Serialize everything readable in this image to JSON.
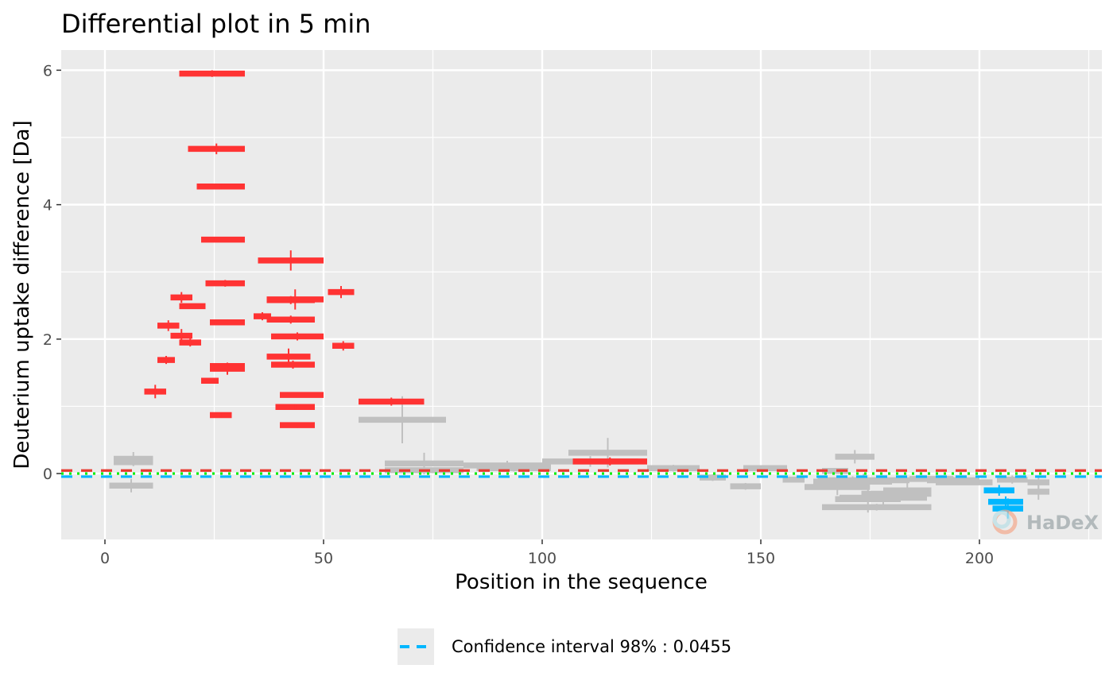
{
  "chart_data": {
    "type": "scatter",
    "title": "Differential plot in 5 min",
    "xlabel": "Position in the sequence",
    "ylabel": "Deuterium uptake difference [Da]",
    "xlim": [
      -10,
      228
    ],
    "ylim": [
      -0.98,
      6.3
    ],
    "x_ticks": [
      0,
      50,
      100,
      150,
      200
    ],
    "x_tick_labels": [
      "0",
      "50",
      "100",
      "150",
      "200"
    ],
    "y_ticks": [
      0,
      2,
      4,
      6
    ],
    "y_tick_labels": [
      "0",
      "2",
      "4",
      "6"
    ],
    "grid": true,
    "legend_position": "bottom",
    "legend": {
      "label": "Confidence interval 98% : 0.0455",
      "color": "#00b7ff"
    },
    "watermark": "HaDeX",
    "colors": {
      "significant_positive": "#ff3333",
      "significant_negative": "#00b7ff",
      "not_significant": "#c0c0c0",
      "ci_upper": "#e8392e",
      "ci_lower": "#00b7ff",
      "zero_line": "#00ee00",
      "panel_background": "#ebebeb",
      "grid": "#ffffff"
    },
    "reference_lines": [
      {
        "y": 0.0455,
        "color": "#e8392e",
        "style": "dashed"
      },
      {
        "y": -0.0455,
        "color": "#00b7ff",
        "style": "dashed"
      },
      {
        "y": 0,
        "color": "#00ee00",
        "style": "dotted"
      }
    ],
    "series": [
      {
        "significance": "positive",
        "color": "#ff3333",
        "segments": [
          {
            "start": 17,
            "end": 32,
            "value": 5.95,
            "err": 0.05
          },
          {
            "start": 19,
            "end": 32,
            "value": 4.83,
            "err": 0.08
          },
          {
            "start": 21,
            "end": 32,
            "value": 4.27,
            "err": 0.04
          },
          {
            "start": 22,
            "end": 32,
            "value": 3.48,
            "err": 0.04
          },
          {
            "start": 23,
            "end": 32,
            "value": 2.83,
            "err": 0.05
          },
          {
            "start": 15,
            "end": 20,
            "value": 2.62,
            "err": 0.08
          },
          {
            "start": 17,
            "end": 23,
            "value": 2.49,
            "err": 0.04
          },
          {
            "start": 12,
            "end": 17,
            "value": 2.2,
            "err": 0.08
          },
          {
            "start": 15,
            "end": 20,
            "value": 2.05,
            "err": 0.1
          },
          {
            "start": 17,
            "end": 22,
            "value": 1.95,
            "err": 0.06
          },
          {
            "start": 24,
            "end": 32,
            "value": 2.25,
            "err": 0.04
          },
          {
            "start": 12,
            "end": 16,
            "value": 1.69,
            "err": 0.06
          },
          {
            "start": 24,
            "end": 32,
            "value": 1.6,
            "err": 0.05
          },
          {
            "start": 24,
            "end": 32,
            "value": 1.56,
            "err": 0.09
          },
          {
            "start": 22,
            "end": 26,
            "value": 1.38,
            "err": 0.04
          },
          {
            "start": 9,
            "end": 14,
            "value": 1.22,
            "err": 0.1
          },
          {
            "start": 24,
            "end": 29,
            "value": 0.87,
            "err": 0.04
          },
          {
            "start": 35,
            "end": 50,
            "value": 3.17,
            "err": 0.15
          },
          {
            "start": 34,
            "end": 38,
            "value": 2.34,
            "err": 0.06
          },
          {
            "start": 37,
            "end": 50,
            "value": 2.59,
            "err": 0.15
          },
          {
            "start": 37,
            "end": 48,
            "value": 2.58,
            "err": 0.06
          },
          {
            "start": 37,
            "end": 48,
            "value": 2.29,
            "err": 0.06
          },
          {
            "start": 38,
            "end": 50,
            "value": 2.04,
            "err": 0.06
          },
          {
            "start": 37,
            "end": 47,
            "value": 1.74,
            "err": 0.12
          },
          {
            "start": 38,
            "end": 48,
            "value": 1.62,
            "err": 0.06
          },
          {
            "start": 40,
            "end": 50,
            "value": 1.17,
            "err": 0.04
          },
          {
            "start": 39,
            "end": 48,
            "value": 0.99,
            "err": 0.04
          },
          {
            "start": 40,
            "end": 48,
            "value": 0.72,
            "err": 0.04
          },
          {
            "start": 51,
            "end": 57,
            "value": 2.7,
            "err": 0.09
          },
          {
            "start": 52,
            "end": 57,
            "value": 1.9,
            "err": 0.07
          },
          {
            "start": 58,
            "end": 73,
            "value": 1.07,
            "err": 0.06
          },
          {
            "start": 107,
            "end": 124,
            "value": 0.18,
            "err": 0.06
          }
        ]
      },
      {
        "significance": "negative",
        "color": "#00b7ff",
        "segments": [
          {
            "start": 201,
            "end": 208,
            "value": -0.25,
            "err": 0.08
          },
          {
            "start": 202,
            "end": 210,
            "value": -0.42,
            "err": 0.08
          },
          {
            "start": 203,
            "end": 210,
            "value": -0.52,
            "err": 0.15
          }
        ]
      },
      {
        "significance": "none",
        "color": "#c0c0c0",
        "segments": [
          {
            "start": 2,
            "end": 11,
            "value": 0.22,
            "err": 0.1
          },
          {
            "start": 2,
            "end": 11,
            "value": 0.17,
            "err": 0.06
          },
          {
            "start": 1,
            "end": 11,
            "value": -0.18,
            "err": 0.1
          },
          {
            "start": 58,
            "end": 78,
            "value": 0.8,
            "err": 0.35
          },
          {
            "start": 64,
            "end": 82,
            "value": 0.15,
            "err": 0.16
          },
          {
            "start": 64,
            "end": 82,
            "value": 0.05,
            "err": 0.06
          },
          {
            "start": 82,
            "end": 102,
            "value": 0.12,
            "err": 0.07
          },
          {
            "start": 85,
            "end": 102,
            "value": 0.08,
            "err": 0.05
          },
          {
            "start": 100,
            "end": 122,
            "value": 0.18,
            "err": 0.08
          },
          {
            "start": 106,
            "end": 124,
            "value": 0.31,
            "err": 0.22
          },
          {
            "start": 124,
            "end": 136,
            "value": 0.08,
            "err": 0.05
          },
          {
            "start": 136,
            "end": 142,
            "value": -0.06,
            "err": 0.05
          },
          {
            "start": 143,
            "end": 150,
            "value": -0.19,
            "err": 0.05
          },
          {
            "start": 146,
            "end": 156,
            "value": 0.08,
            "err": 0.04
          },
          {
            "start": 155,
            "end": 160,
            "value": -0.09,
            "err": 0.04
          },
          {
            "start": 164,
            "end": 170,
            "value": 0.04,
            "err": 0.04
          },
          {
            "start": 167,
            "end": 176,
            "value": 0.25,
            "err": 0.1
          },
          {
            "start": 160,
            "end": 175,
            "value": -0.2,
            "err": 0.12
          },
          {
            "start": 162,
            "end": 180,
            "value": -0.12,
            "err": 0.08
          },
          {
            "start": 163,
            "end": 184,
            "value": -0.1,
            "err": 0.1
          },
          {
            "start": 167,
            "end": 182,
            "value": -0.38,
            "err": 0.2
          },
          {
            "start": 164,
            "end": 189,
            "value": -0.5,
            "err": 0.05
          },
          {
            "start": 168,
            "end": 188,
            "value": -0.36,
            "err": 0.1
          },
          {
            "start": 173,
            "end": 189,
            "value": -0.3,
            "err": 0.08
          },
          {
            "start": 178,
            "end": 189,
            "value": -0.25,
            "err": 0.12
          },
          {
            "start": 184,
            "end": 194,
            "value": -0.08,
            "err": 0.04
          },
          {
            "start": 188,
            "end": 200,
            "value": -0.1,
            "err": 0.05
          },
          {
            "start": 190,
            "end": 203,
            "value": -0.13,
            "err": 0.04
          },
          {
            "start": 204,
            "end": 211,
            "value": -0.09,
            "err": 0.06
          },
          {
            "start": 211,
            "end": 216,
            "value": -0.13,
            "err": 0.1
          },
          {
            "start": 211,
            "end": 216,
            "value": -0.27,
            "err": 0.12
          }
        ]
      }
    ]
  }
}
